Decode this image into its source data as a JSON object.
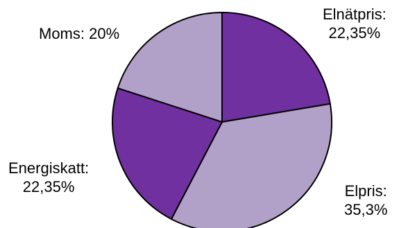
{
  "chart_data": {
    "type": "pie",
    "title": "",
    "slices": [
      {
        "name": "Elnätpris",
        "value": 22.35,
        "label_name": "Elnätpris:",
        "label_value": "22,35%",
        "color": "#7030a0"
      },
      {
        "name": "Elpris",
        "value": 35.3,
        "label_name": "Elpris:",
        "label_value": "35,3%",
        "color": "#b1a0c7"
      },
      {
        "name": "Energiskatt",
        "value": 22.35,
        "label_name": "Energiskatt:",
        "label_value": "22,35%",
        "color": "#7030a0"
      },
      {
        "name": "Moms",
        "value": 20,
        "label_name": "Moms: 20%",
        "label_value": "",
        "color": "#b1a0c7"
      }
    ],
    "start_angle_deg": 0,
    "direction": "clockwise",
    "slice_border_color": "#000000",
    "legend": "none"
  }
}
